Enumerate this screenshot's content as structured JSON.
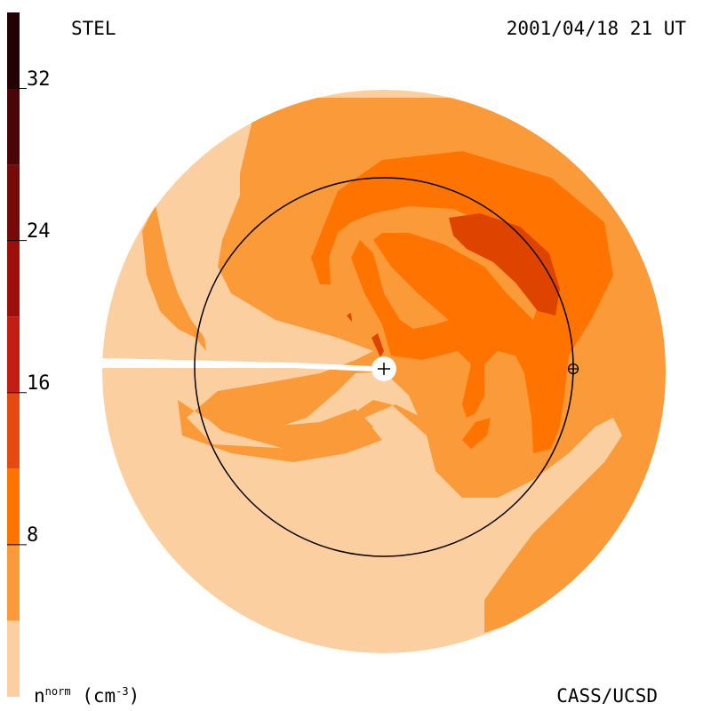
{
  "header": {
    "instrument": "STEL",
    "timestamp": "2001/04/18 21 UT"
  },
  "footer": {
    "quantity": "n",
    "quantity_superscript": "norm",
    "unit": "(cm",
    "unit_exponent": "-3",
    "unit_close": ")",
    "credit": "CASS/UCSD"
  },
  "colorbar": {
    "ticks": [
      {
        "value": 8,
        "label": "8"
      },
      {
        "value": 16,
        "label": "16"
      },
      {
        "value": 24,
        "label": "24"
      },
      {
        "value": 32,
        "label": "32"
      }
    ],
    "range": [
      0,
      36
    ],
    "levels": [
      {
        "from": 0,
        "to": 4,
        "color": "#FCCFA0"
      },
      {
        "from": 4,
        "to": 8,
        "color": "#FA9A38"
      },
      {
        "from": 8,
        "to": 12,
        "color": "#FF7300"
      },
      {
        "from": 12,
        "to": 16,
        "color": "#E54A10"
      },
      {
        "from": 16,
        "to": 20,
        "color": "#C41E12"
      },
      {
        "from": 20,
        "to": 24,
        "color": "#9E0F0C"
      },
      {
        "from": 24,
        "to": 28,
        "color": "#760A08"
      },
      {
        "from": 28,
        "to": 32,
        "color": "#4A0606"
      },
      {
        "from": 32,
        "to": 36,
        "color": "#220303"
      }
    ]
  },
  "markers": {
    "sun": "+",
    "earth": "earth-symbol"
  }
}
